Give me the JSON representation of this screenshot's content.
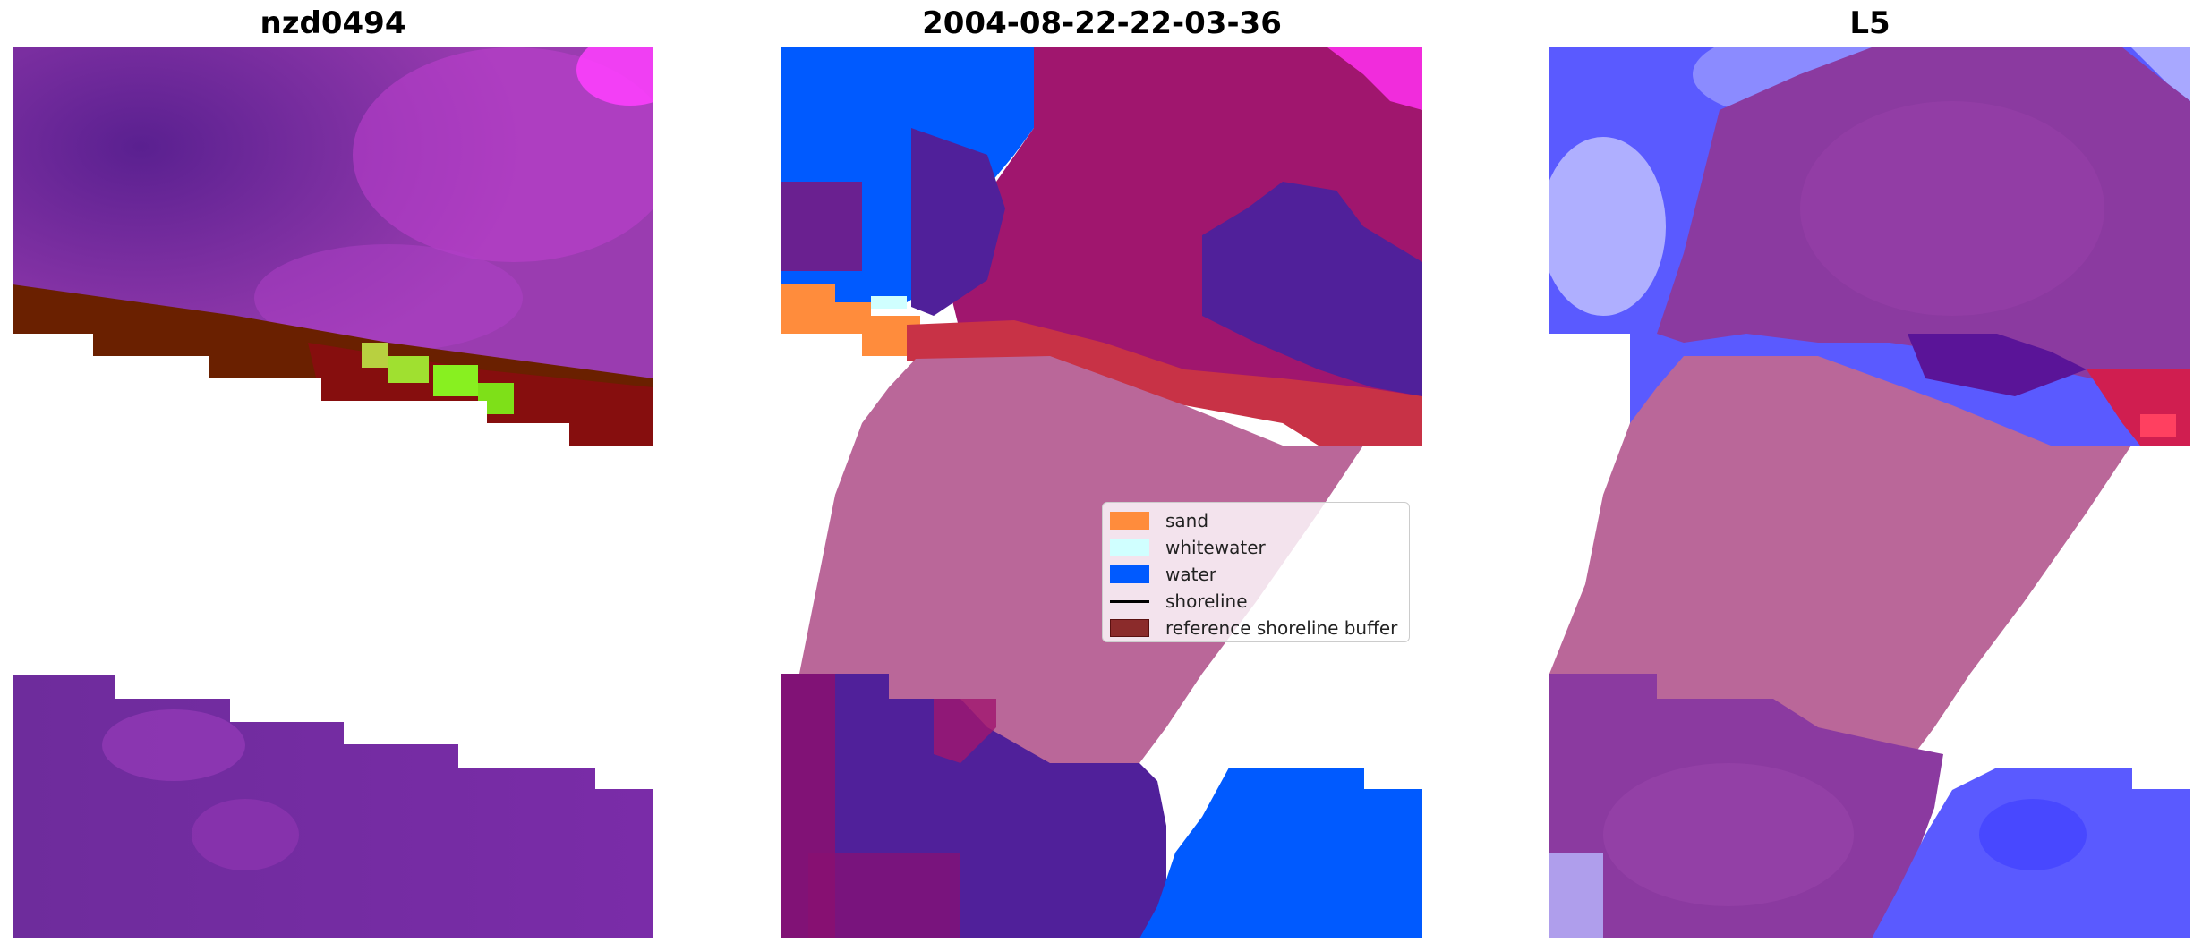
{
  "panels": [
    {
      "title": "nzd0494"
    },
    {
      "title": "2004-08-22-22-03-36"
    },
    {
      "title": "L5"
    }
  ],
  "legend": {
    "items": [
      {
        "label": "sand",
        "color": "#ff8c3c"
      },
      {
        "label": "whitewater",
        "color": "#d0ffff"
      },
      {
        "label": "water",
        "color": "#005aff"
      },
      {
        "label": "shoreline",
        "color": "#000000"
      },
      {
        "label": "reference shoreline buffer",
        "color": "#8b2b2b"
      }
    ]
  },
  "colors": {
    "background": "#ffffff",
    "buffer_pink": "#ba6799",
    "land_purple": "#8b2fa8",
    "classified_water": "#005aff",
    "classified_sand": "#ff8c3c",
    "classified_whitewater": "#d0ffff"
  }
}
